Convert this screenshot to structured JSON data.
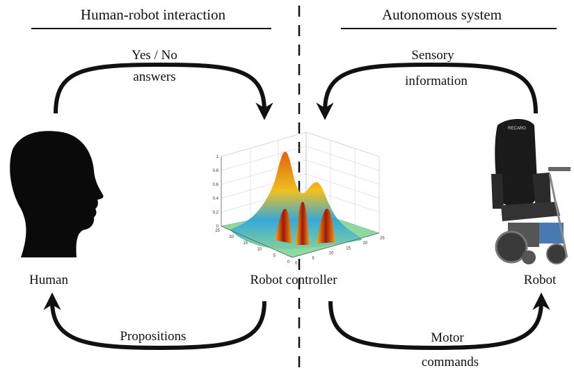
{
  "headings": {
    "left": "Human-robot interaction",
    "right": "Autonomous system"
  },
  "arrows": {
    "top_left": [
      "Yes / No",
      "answers"
    ],
    "top_right": [
      "Sensory",
      "information"
    ],
    "bottom_left": [
      "Propositions"
    ],
    "bottom_right": [
      "Motor",
      "commands"
    ]
  },
  "nodes": {
    "human": "Human",
    "controller": "Robot controller",
    "robot": "Robot"
  },
  "plot": {
    "zticks": [
      "0",
      "0.2",
      "0.4",
      "0.6",
      "0.8",
      "1"
    ],
    "xticks": [
      "0",
      "5",
      "10",
      "15",
      "20",
      "25"
    ],
    "yticks": [
      "0",
      "5",
      "10",
      "15",
      "20",
      "25"
    ]
  },
  "robot_brand": "RECARO"
}
